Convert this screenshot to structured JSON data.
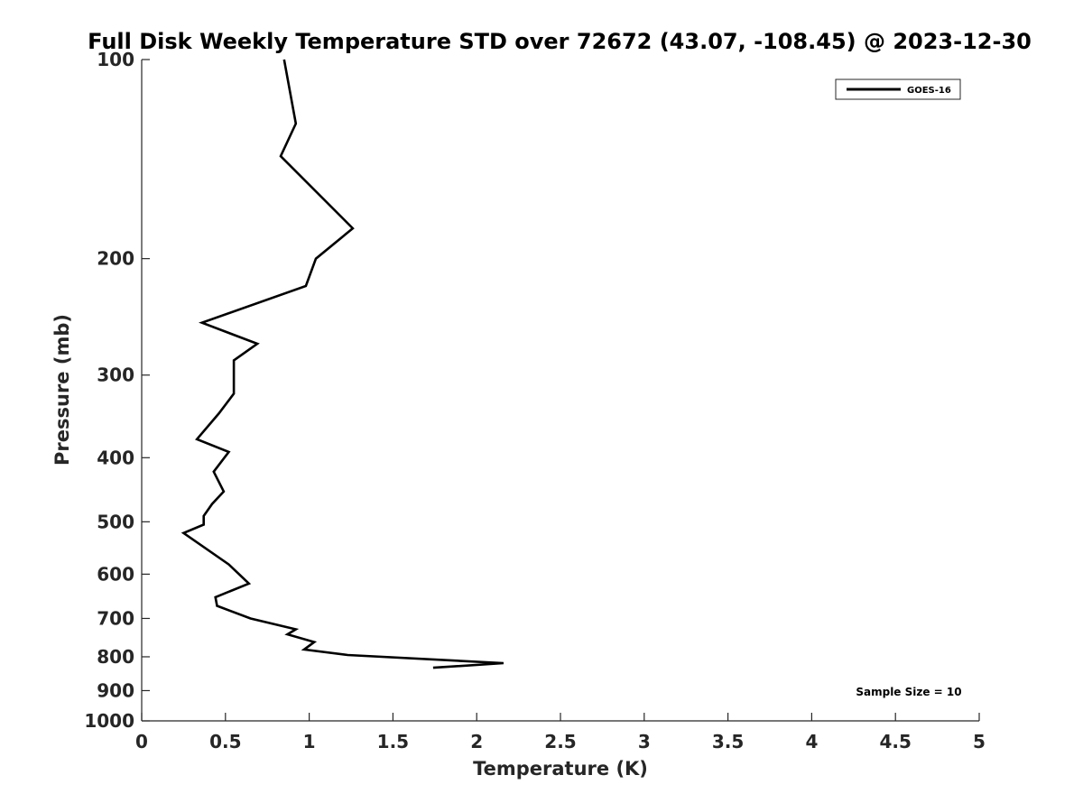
{
  "chart_data": {
    "type": "line",
    "title": "Full Disk Weekly Temperature STD over 72672 (43.07, -108.45) @ 2023-12-30",
    "xlabel": "Temperature (K)",
    "ylabel": "Pressure (mb)",
    "xlim": [
      0,
      5
    ],
    "ylim": [
      100,
      1000
    ],
    "y_scale": "log",
    "y_reversed": true,
    "grid": false,
    "legend_position": "top-right",
    "x_ticks": [
      0,
      0.5,
      1,
      1.5,
      2,
      2.5,
      3,
      3.5,
      4,
      4.5,
      5
    ],
    "x_tick_labels": [
      "0",
      "0.5",
      "1",
      "1.5",
      "2",
      "2.5",
      "3",
      "3.5",
      "4",
      "4.5",
      "5"
    ],
    "y_ticks": [
      100,
      200,
      300,
      400,
      500,
      600,
      700,
      800,
      900,
      1000
    ],
    "y_tick_labels": [
      "100",
      "200",
      "300",
      "400",
      "500",
      "600",
      "700",
      "800",
      "900",
      "1000"
    ],
    "series": [
      {
        "name": "GOES-16",
        "color": "#000000",
        "points": [
          [
            0.85,
            100
          ],
          [
            0.92,
            125
          ],
          [
            0.83,
            140
          ],
          [
            1.26,
            180
          ],
          [
            1.04,
            200
          ],
          [
            0.98,
            220
          ],
          [
            0.36,
            250
          ],
          [
            0.69,
            269
          ],
          [
            0.55,
            285
          ],
          [
            0.55,
            300
          ],
          [
            0.55,
            320
          ],
          [
            0.46,
            343
          ],
          [
            0.33,
            375
          ],
          [
            0.52,
            392
          ],
          [
            0.43,
            420
          ],
          [
            0.49,
            450
          ],
          [
            0.42,
            470
          ],
          [
            0.37,
            490
          ],
          [
            0.37,
            505
          ],
          [
            0.25,
            520
          ],
          [
            0.52,
            580
          ],
          [
            0.64,
            620
          ],
          [
            0.44,
            650
          ],
          [
            0.45,
            670
          ],
          [
            0.65,
            700
          ],
          [
            0.92,
            727
          ],
          [
            0.87,
            740
          ],
          [
            1.03,
            760
          ],
          [
            0.97,
            780
          ],
          [
            1.23,
            795
          ],
          [
            2.16,
            818
          ],
          [
            1.74,
            831
          ]
        ]
      }
    ],
    "annotation": "Sample Size = 10"
  }
}
